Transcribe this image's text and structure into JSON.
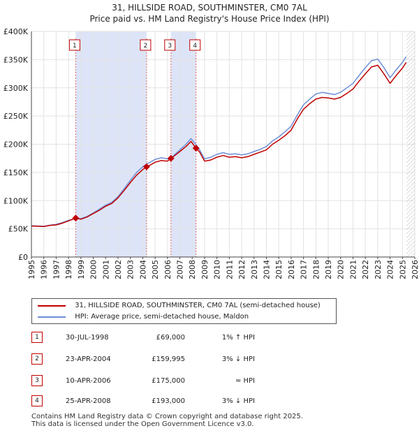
{
  "colors": {
    "price_line": "#c00000",
    "hpi_line": "#6d8fd6",
    "shade": "#dde4f7",
    "grid": "#e2e2e2",
    "marker_border": "#c00000",
    "dashed_line": "#e06666"
  },
  "chart_data": {
    "type": "line",
    "title": "31, HILLSIDE ROAD, SOUTHMINSTER, CM0 7AL",
    "subtitle": "Price paid vs. HM Land Registry's House Price Index (HPI)",
    "xlim": [
      1995,
      2026
    ],
    "ylim": [
      0,
      400000
    ],
    "x_ticks": [
      "1995",
      "1996",
      "1997",
      "1998",
      "1999",
      "2000",
      "2001",
      "2002",
      "2003",
      "2004",
      "2005",
      "2006",
      "2007",
      "2008",
      "2009",
      "2010",
      "2011",
      "2012",
      "2013",
      "2014",
      "2015",
      "2016",
      "2017",
      "2018",
      "2019",
      "2020",
      "2021",
      "2022",
      "2023",
      "2024",
      "2025",
      "2026"
    ],
    "y_ticks": [
      {
        "value": 0,
        "label": "£0"
      },
      {
        "value": 50000,
        "label": "£50K"
      },
      {
        "value": 100000,
        "label": "£100K"
      },
      {
        "value": 150000,
        "label": "£150K"
      },
      {
        "value": 200000,
        "label": "£200K"
      },
      {
        "value": 250000,
        "label": "£250K"
      },
      {
        "value": 300000,
        "label": "£300K"
      },
      {
        "value": 350000,
        "label": "£350K"
      },
      {
        "value": 400000,
        "label": "£400K"
      }
    ],
    "shaded_ranges": [
      [
        1998.58,
        2004.31
      ],
      [
        2006.28,
        2008.31
      ]
    ],
    "future_hatch_start": 2025.3,
    "series": [
      {
        "name": "31, HILLSIDE ROAD, SOUTHMINSTER, CM0 7AL (semi-detached house)",
        "x": [
          1995.0,
          1995.5,
          1996.0,
          1996.5,
          1997.0,
          1997.5,
          1998.0,
          1998.58,
          1999.0,
          1999.5,
          2000.0,
          2000.5,
          2001.0,
          2001.5,
          2002.0,
          2002.5,
          2003.0,
          2003.5,
          2004.0,
          2004.31,
          2004.6,
          2005.0,
          2005.5,
          2006.0,
          2006.28,
          2006.6,
          2007.0,
          2007.5,
          2007.9,
          2008.31,
          2008.6,
          2009.0,
          2009.5,
          2010.0,
          2010.5,
          2011.0,
          2011.5,
          2012.0,
          2012.5,
          2013.0,
          2013.5,
          2014.0,
          2014.5,
          2015.0,
          2015.5,
          2016.0,
          2016.5,
          2017.0,
          2017.5,
          2018.0,
          2018.5,
          2019.0,
          2019.5,
          2020.0,
          2020.5,
          2021.0,
          2021.5,
          2022.0,
          2022.5,
          2023.0,
          2023.5,
          2024.0,
          2024.5,
          2025.0,
          2025.3
        ],
        "values": [
          55000,
          54500,
          54000,
          56000,
          57000,
          60000,
          64000,
          69000,
          67000,
          71000,
          77000,
          83000,
          90000,
          95000,
          105000,
          118000,
          132000,
          145000,
          155000,
          159995,
          163000,
          168000,
          171000,
          170000,
          175000,
          180000,
          187000,
          196000,
          205000,
          193000,
          186000,
          170000,
          172000,
          177000,
          180000,
          177000,
          178000,
          176000,
          178000,
          182000,
          186000,
          190000,
          200000,
          207000,
          215000,
          225000,
          245000,
          262000,
          272000,
          280000,
          283000,
          282000,
          280000,
          283000,
          290000,
          298000,
          312000,
          325000,
          337000,
          340000,
          325000,
          308000,
          322000,
          335000,
          345000
        ]
      },
      {
        "name": "HPI: Average price, semi-detached house, Maldon",
        "x": [
          1995.0,
          1995.5,
          1996.0,
          1996.5,
          1997.0,
          1997.5,
          1998.0,
          1998.58,
          1999.0,
          1999.5,
          2000.0,
          2000.5,
          2001.0,
          2001.5,
          2002.0,
          2002.5,
          2003.0,
          2003.5,
          2004.0,
          2004.31,
          2004.6,
          2005.0,
          2005.5,
          2006.0,
          2006.28,
          2006.6,
          2007.0,
          2007.5,
          2007.9,
          2008.31,
          2008.6,
          2009.0,
          2009.5,
          2010.0,
          2010.5,
          2011.0,
          2011.5,
          2012.0,
          2012.5,
          2013.0,
          2013.5,
          2014.0,
          2014.5,
          2015.0,
          2015.5,
          2016.0,
          2016.5,
          2017.0,
          2017.5,
          2018.0,
          2018.5,
          2019.0,
          2019.5,
          2020.0,
          2020.5,
          2021.0,
          2021.5,
          2022.0,
          2022.5,
          2023.0,
          2023.5,
          2024.0,
          2024.5,
          2025.0,
          2025.3
        ],
        "values": [
          55500,
          55000,
          54500,
          56500,
          58000,
          61000,
          65000,
          68300,
          68000,
          72000,
          78000,
          85000,
          92000,
          97000,
          107000,
          121000,
          136000,
          150000,
          160000,
          165000,
          168000,
          173000,
          176000,
          174000,
          175000,
          182000,
          190000,
          200000,
          210000,
          199000,
          190000,
          174000,
          177000,
          182000,
          185000,
          182000,
          183000,
          181000,
          183000,
          187000,
          191000,
          196000,
          206000,
          213000,
          222000,
          232000,
          252000,
          270000,
          280000,
          289000,
          292000,
          290000,
          288000,
          292000,
          300000,
          308000,
          322000,
          336000,
          348000,
          351000,
          336000,
          318000,
          332000,
          345000,
          355000
        ]
      }
    ],
    "sale_markers": [
      {
        "id": "1",
        "x": 1998.58,
        "value": 69000
      },
      {
        "id": "2",
        "x": 2004.31,
        "value": 159995
      },
      {
        "id": "3",
        "x": 2006.28,
        "value": 175000
      },
      {
        "id": "4",
        "x": 2008.31,
        "value": 193000
      }
    ]
  },
  "legend": {
    "items": [
      {
        "label": "31, HILLSIDE ROAD, SOUTHMINSTER, CM0 7AL (semi-detached house)"
      },
      {
        "label": "HPI: Average price, semi-detached house, Maldon"
      }
    ]
  },
  "sales": [
    {
      "id": "1",
      "date": "30-JUL-1998",
      "price": "£69,000",
      "hpi": "1% ↑ HPI"
    },
    {
      "id": "2",
      "date": "23-APR-2004",
      "price": "£159,995",
      "hpi": "3% ↓ HPI"
    },
    {
      "id": "3",
      "date": "10-APR-2006",
      "price": "£175,000",
      "hpi": "≈ HPI"
    },
    {
      "id": "4",
      "date": "25-APR-2008",
      "price": "£193,000",
      "hpi": "3% ↓ HPI"
    }
  ],
  "footer": {
    "line1": "Contains HM Land Registry data © Crown copyright and database right 2025.",
    "line2": "This data is licensed under the Open Government Licence v3.0."
  }
}
